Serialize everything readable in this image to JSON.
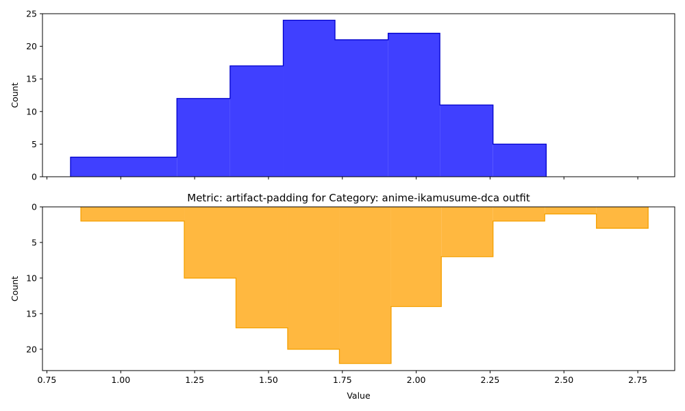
{
  "chart_data": [
    {
      "type": "histogram-step",
      "title": "",
      "xlabel": "",
      "ylabel": "Count",
      "xlim": [
        0.735,
        2.875
      ],
      "ylim": [
        0,
        25
      ],
      "y_inverted": false,
      "x_tick_labels_visible": false,
      "x_ticks": [
        0.75,
        1.0,
        1.25,
        1.5,
        1.75,
        2.0,
        2.25,
        2.5,
        2.75
      ],
      "y_ticks": [
        0,
        5,
        10,
        15,
        20,
        25
      ],
      "bin_edges": [
        0.83,
        1.19,
        1.37,
        1.55,
        1.725,
        1.905,
        2.08,
        2.26,
        2.44
      ],
      "values": [
        3,
        12,
        17,
        24,
        21,
        22,
        11,
        5
      ],
      "colors": {
        "fill": "#4040ff",
        "edge": "#0000cc"
      }
    },
    {
      "type": "histogram-step",
      "title": "Metric: artifact-padding for Category: anime-ikamusume-dca outfit",
      "xlabel": "Value",
      "ylabel": "Count",
      "xlim": [
        0.735,
        2.875
      ],
      "ylim": [
        0,
        23
      ],
      "y_inverted": true,
      "x_tick_labels_visible": true,
      "x_ticks": [
        0.75,
        1.0,
        1.25,
        1.5,
        1.75,
        2.0,
        2.25,
        2.5,
        2.75
      ],
      "x_tick_labels": [
        "0.75",
        "1.00",
        "1.25",
        "1.50",
        "1.75",
        "2.00",
        "2.25",
        "2.50",
        "2.75"
      ],
      "y_ticks": [
        0,
        5,
        10,
        15,
        20
      ],
      "bin_edges": [
        0.865,
        1.215,
        1.39,
        1.565,
        1.74,
        1.915,
        2.085,
        2.26,
        2.435,
        2.61,
        2.785
      ],
      "values": [
        2,
        10,
        17,
        20,
        22,
        14,
        7,
        2,
        1,
        3
      ],
      "colors": {
        "fill": "#ffb840",
        "edge": "#f5a000"
      }
    }
  ]
}
